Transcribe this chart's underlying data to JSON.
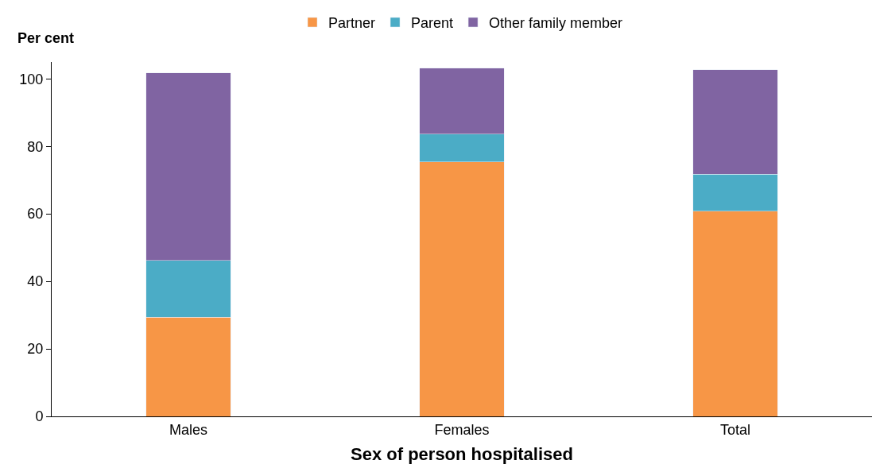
{
  "chart_data": {
    "type": "bar",
    "stacked": true,
    "xlabel": "Sex of person hospitalised",
    "ylabel": "Per cent",
    "categories": [
      "Males",
      "Females",
      "Total"
    ],
    "series": [
      {
        "name": "Partner",
        "color": "#f79646",
        "values": [
          29.4,
          75.4,
          60.8
        ]
      },
      {
        "name": "Parent",
        "color": "#4bacc6",
        "values": [
          16.8,
          8.2,
          11.0
        ]
      },
      {
        "name": "Other family member",
        "color": "#8064a2",
        "values": [
          55.6,
          19.6,
          30.9
        ]
      }
    ],
    "ylim": [
      0,
      105
    ],
    "yticks": [
      0,
      20,
      40,
      60,
      80,
      100
    ],
    "legend": "top"
  }
}
